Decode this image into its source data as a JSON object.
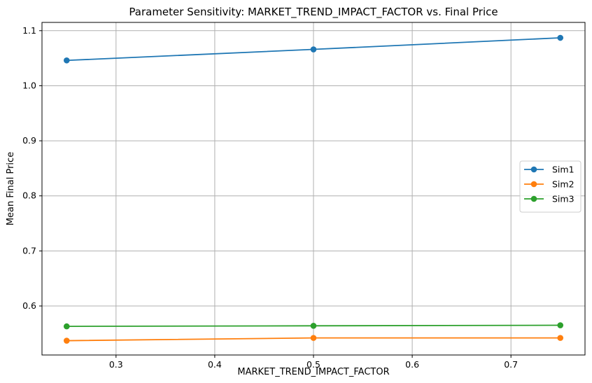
{
  "chart_data": {
    "type": "line",
    "title": "Parameter Sensitivity: MARKET_TREND_IMPACT_FACTOR vs. Final Price",
    "xlabel": "MARKET_TREND_IMPACT_FACTOR",
    "ylabel": "Mean Final Price",
    "x": [
      0.25,
      0.5,
      0.75
    ],
    "xlim": [
      0.225,
      0.775
    ],
    "ylim": [
      0.511,
      1.115
    ],
    "xticks": [
      0.3,
      0.4,
      0.5,
      0.6,
      0.7
    ],
    "xtick_labels": [
      "0.3",
      "0.4",
      "0.5",
      "0.6",
      "0.7"
    ],
    "yticks": [
      0.6,
      0.7,
      0.8,
      0.9,
      1.0,
      1.1
    ],
    "ytick_labels": [
      "0.6",
      "0.7",
      "0.8",
      "0.9",
      "1.0",
      "1.1"
    ],
    "grid": true,
    "legend_position": "center-right",
    "series": [
      {
        "name": "Sim1",
        "color": "#1f77b4",
        "values": [
          1.046,
          1.066,
          1.087
        ]
      },
      {
        "name": "Sim2",
        "color": "#ff7f0e",
        "values": [
          0.537,
          0.542,
          0.542
        ]
      },
      {
        "name": "Sim3",
        "color": "#2ca02c",
        "values": [
          0.563,
          0.564,
          0.565
        ]
      }
    ]
  }
}
